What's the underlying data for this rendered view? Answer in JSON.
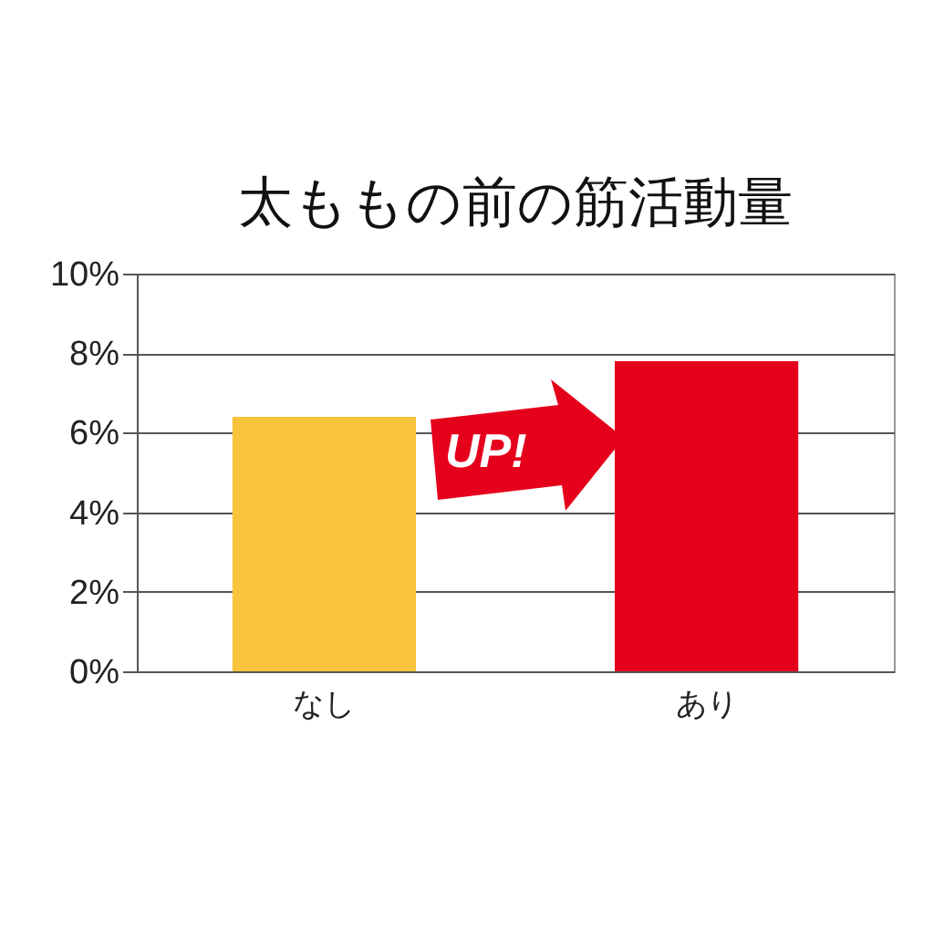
{
  "chart_data": {
    "type": "bar",
    "title": "太ももの前の筋活動量",
    "categories": [
      "なし",
      "あり"
    ],
    "values": [
      6.4,
      7.8
    ],
    "colors": [
      "#f8c43c",
      "#e5001c"
    ],
    "ylim": [
      0,
      10
    ],
    "yticks": [
      {
        "value": 0,
        "label": "0%"
      },
      {
        "value": 2,
        "label": "2%"
      },
      {
        "value": 4,
        "label": "4%"
      },
      {
        "value": 6,
        "label": "6%"
      },
      {
        "value": 8,
        "label": "8%"
      },
      {
        "value": 10,
        "label": "10%"
      }
    ],
    "grid": "y",
    "annotations": [
      "UP!"
    ]
  }
}
